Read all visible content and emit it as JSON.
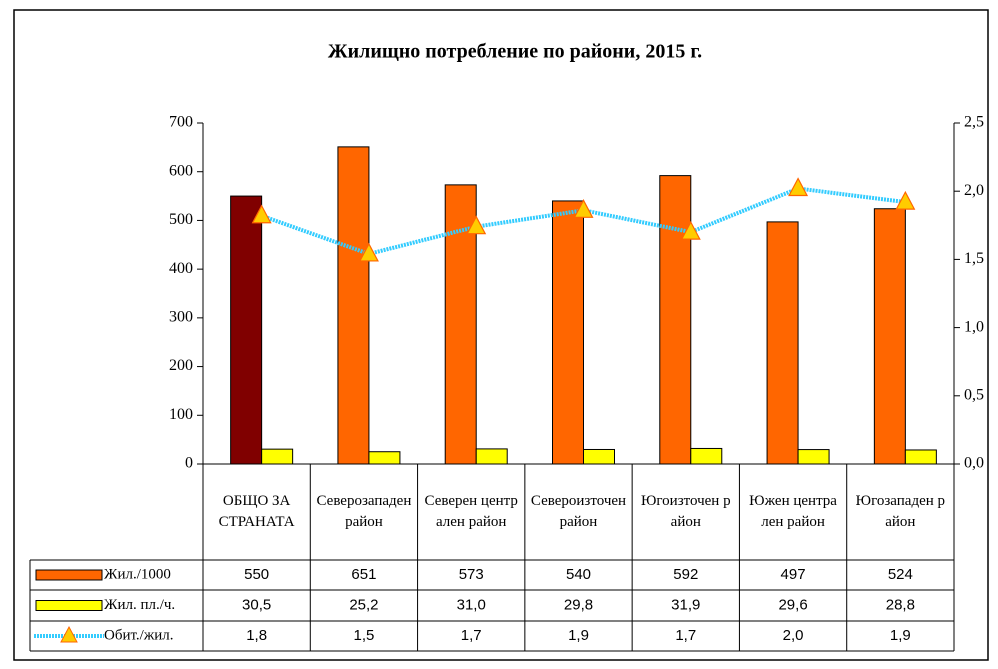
{
  "chart_data": {
    "type": "bar_line",
    "title": "Жилищно потребление по райони, 2015 г.",
    "categories": [
      "ОБЩО ЗА СТРАНАТА",
      "Северозападен район",
      "Северен централен район",
      "Североизточен район",
      "Югоизточен район",
      "Южен централен район",
      "Югозападен район"
    ],
    "series": [
      {
        "name": "Жил./1000",
        "type": "bar",
        "color": "#ff6600",
        "colors": [
          "#800000",
          "#ff6600",
          "#ff6600",
          "#ff6600",
          "#ff6600",
          "#ff6600",
          "#ff6600"
        ],
        "values": [
          550,
          651,
          573,
          540,
          592,
          497,
          524
        ]
      },
      {
        "name": "Жил. пл./ч.",
        "type": "bar",
        "color": "#ffff00",
        "values": [
          30.5,
          25.2,
          31.0,
          29.8,
          31.9,
          29.6,
          28.8
        ],
        "value_labels": [
          "30,5",
          "25,2",
          "31,0",
          "29,8",
          "31,9",
          "29,6",
          "28,8"
        ]
      },
      {
        "name": "Обит./жил.",
        "type": "line",
        "axis": "y2",
        "color": "#33ccff",
        "marker_color": "#ffcc00",
        "values": [
          1.82,
          1.54,
          1.74,
          1.86,
          1.7,
          2.02,
          1.92
        ],
        "value_labels": [
          "1,8",
          "1,5",
          "1,7",
          "1,9",
          "1,7",
          "2,0",
          "1,9"
        ]
      }
    ],
    "ylim": [
      0,
      700
    ],
    "yticks": [
      0,
      100,
      200,
      300,
      400,
      500,
      600,
      700
    ],
    "y2lim": [
      0,
      2.5
    ],
    "y2ticks": [
      {
        "value": 0,
        "label": "0,0"
      },
      {
        "value": 0.5,
        "label": "0,5"
      },
      {
        "value": 1,
        "label": "1,0"
      },
      {
        "value": 1.5,
        "label": "1,5"
      },
      {
        "value": 2,
        "label": "2,0"
      },
      {
        "value": 2.5,
        "label": "2,5"
      }
    ]
  }
}
